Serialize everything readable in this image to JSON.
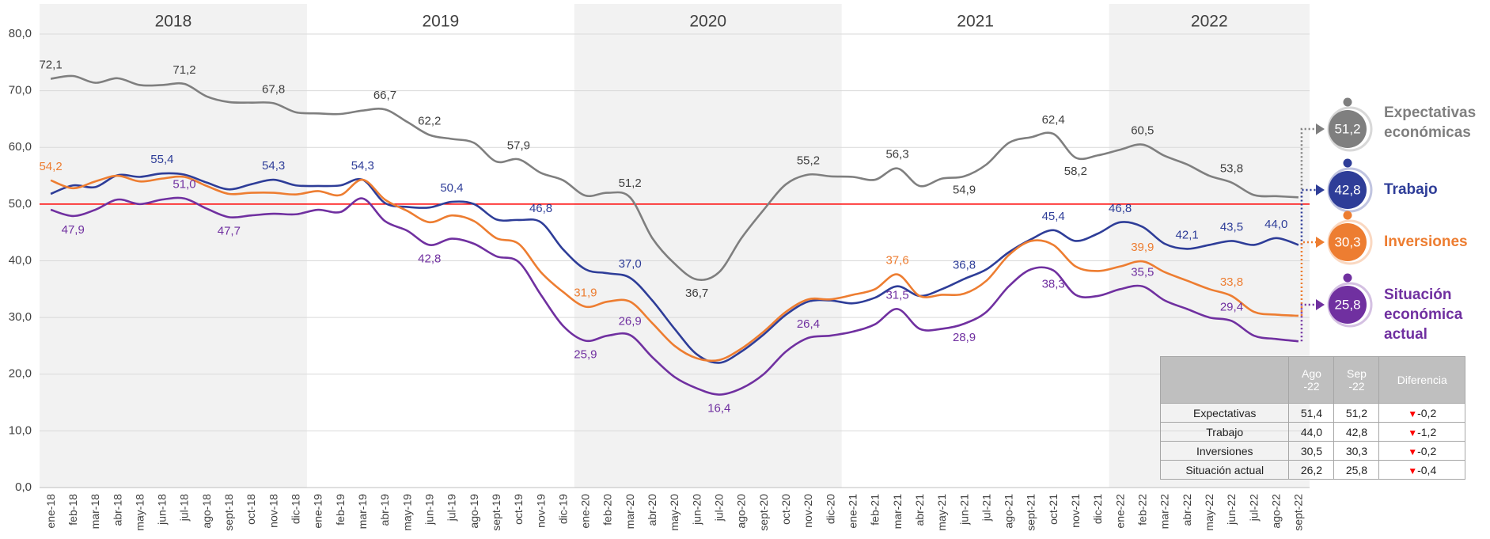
{
  "chart_data": {
    "type": "line",
    "categories": [
      "ene-18",
      "feb-18",
      "mar-18",
      "abr-18",
      "may-18",
      "jun-18",
      "jul-18",
      "ago-18",
      "sept-18",
      "oct-18",
      "nov-18",
      "dic-18",
      "ene-19",
      "feb-19",
      "mar-19",
      "abr-19",
      "may-19",
      "jun-19",
      "jul-19",
      "ago-19",
      "sept-19",
      "oct-19",
      "nov-19",
      "dic-19",
      "ene-20",
      "feb-20",
      "mar-20",
      "abr-20",
      "may-20",
      "jun-20",
      "jul-20",
      "ago-20",
      "sept-20",
      "oct-20",
      "nov-20",
      "dic-20",
      "ene-21",
      "feb-21",
      "mar-21",
      "abr-21",
      "may-21",
      "jun-21",
      "jul-21",
      "ago-21",
      "sept-21",
      "oct-21",
      "nov-21",
      "dic-21",
      "ene-22",
      "feb-22",
      "mar-22",
      "abr-22",
      "may-22",
      "jun-22",
      "jul-22",
      "ago-22",
      "sept-22"
    ],
    "year_bands": [
      {
        "label": "2018",
        "shaded": true
      },
      {
        "label": "2019",
        "shaded": false
      },
      {
        "label": "2020",
        "shaded": true
      },
      {
        "label": "2021",
        "shaded": false
      },
      {
        "label": "2022",
        "shaded": true
      }
    ],
    "ylim": [
      0,
      80
    ],
    "yticks": [
      {
        "value": 0,
        "label": "0,0"
      },
      {
        "value": 10,
        "label": "10,0"
      },
      {
        "value": 20,
        "label": "20,0"
      },
      {
        "value": 30,
        "label": "30,0"
      },
      {
        "value": 40,
        "label": "40,0"
      },
      {
        "value": 50,
        "label": "50,0"
      },
      {
        "value": 60,
        "label": "60,0"
      },
      {
        "value": 70,
        "label": "70,0"
      },
      {
        "value": 80,
        "label": "80,0"
      }
    ],
    "grid": true,
    "reference_line": {
      "value": 50,
      "color": "#ff0000"
    },
    "series": [
      {
        "name": "Expectativas económicas",
        "color": "#7f7f7f",
        "end_label": "51,2",
        "values": [
          72.1,
          72.6,
          71.4,
          72.2,
          71.0,
          71.0,
          71.2,
          69.0,
          68.0,
          67.9,
          67.8,
          66.2,
          66.0,
          65.9,
          66.5,
          66.7,
          64.5,
          62.2,
          61.5,
          60.8,
          57.5,
          57.9,
          55.5,
          54.2,
          51.5,
          52.0,
          51.2,
          44.0,
          39.5,
          36.7,
          38.0,
          44.0,
          49.0,
          53.5,
          55.2,
          54.9,
          54.8,
          54.3,
          56.3,
          53.2,
          54.5,
          54.9,
          57.0,
          60.8,
          61.8,
          62.4,
          58.2,
          58.6,
          59.6,
          60.5,
          58.5,
          57.0,
          55.0,
          53.8,
          51.6,
          51.4,
          51.2
        ],
        "value_labels": [
          "72,1",
          null,
          null,
          null,
          null,
          null,
          "71,2",
          null,
          null,
          null,
          "67,8",
          null,
          null,
          null,
          null,
          "66,7",
          null,
          "62,2",
          null,
          null,
          null,
          "57,9",
          null,
          null,
          null,
          null,
          "51,2",
          null,
          null,
          "36,7",
          null,
          null,
          null,
          null,
          "55,2",
          null,
          null,
          null,
          "56,3",
          null,
          null,
          "54,9",
          null,
          null,
          null,
          "62,4",
          "58,2",
          null,
          null,
          "60,5",
          null,
          null,
          null,
          "53,8",
          null,
          null,
          null
        ]
      },
      {
        "name": "Trabajo",
        "color": "#2e3d98",
        "end_label": "42,8",
        "values": [
          51.8,
          53.3,
          53.0,
          55.1,
          54.8,
          55.4,
          55.2,
          53.8,
          52.6,
          53.5,
          54.3,
          53.3,
          53.2,
          53.3,
          54.3,
          50.2,
          49.5,
          49.4,
          50.4,
          50.0,
          47.3,
          47.2,
          46.8,
          42.0,
          38.5,
          37.8,
          37.0,
          33.0,
          28.0,
          23.5,
          22.0,
          24.0,
          27.0,
          30.5,
          32.8,
          33.0,
          32.5,
          33.5,
          35.5,
          33.8,
          35.0,
          36.8,
          38.5,
          41.5,
          43.8,
          45.4,
          43.5,
          44.8,
          46.8,
          46.0,
          43.0,
          42.1,
          42.8,
          43.5,
          42.8,
          44.0,
          42.8
        ],
        "value_labels": [
          null,
          null,
          null,
          null,
          null,
          "55,4",
          null,
          null,
          null,
          null,
          "54,3",
          null,
          null,
          null,
          "54,3",
          null,
          null,
          null,
          "50,4",
          null,
          null,
          null,
          "46,8",
          null,
          null,
          null,
          "37,0",
          null,
          null,
          null,
          null,
          null,
          null,
          null,
          null,
          null,
          null,
          null,
          null,
          null,
          null,
          "36,8",
          null,
          null,
          null,
          "45,4",
          null,
          null,
          "46,8",
          null,
          null,
          "42,1",
          null,
          "43,5",
          null,
          "44,0",
          null
        ]
      },
      {
        "name": "Inversiones",
        "color": "#ed7d31",
        "end_label": "30,3",
        "values": [
          54.2,
          52.8,
          54.0,
          55.0,
          54.0,
          54.5,
          54.8,
          53.2,
          51.8,
          52.0,
          52.0,
          51.7,
          52.3,
          51.6,
          54.3,
          50.8,
          48.8,
          46.8,
          48.0,
          47.0,
          44.0,
          43.0,
          38.0,
          34.5,
          31.9,
          32.8,
          32.8,
          29.0,
          25.0,
          22.8,
          22.5,
          24.5,
          27.5,
          31.0,
          33.2,
          33.2,
          34.0,
          35.0,
          37.6,
          33.8,
          34.0,
          34.2,
          36.5,
          41.0,
          43.5,
          42.8,
          39.0,
          38.2,
          39.0,
          39.9,
          38.0,
          36.5,
          35.0,
          33.8,
          31.0,
          30.5,
          30.3
        ],
        "value_labels": [
          "54,2",
          null,
          null,
          null,
          null,
          null,
          null,
          null,
          null,
          null,
          null,
          null,
          null,
          null,
          null,
          null,
          null,
          null,
          null,
          null,
          null,
          null,
          null,
          null,
          "31,9",
          null,
          null,
          null,
          null,
          null,
          null,
          null,
          null,
          null,
          null,
          null,
          null,
          null,
          "37,6",
          null,
          null,
          null,
          null,
          null,
          null,
          null,
          null,
          null,
          null,
          "39,9",
          null,
          null,
          null,
          "33,8",
          null,
          null,
          null
        ]
      },
      {
        "name": "Situación económica actual",
        "color": "#7030a0",
        "end_label": "25,8",
        "values": [
          49.0,
          47.9,
          49.0,
          50.8,
          50.0,
          50.8,
          51.0,
          49.2,
          47.7,
          48.0,
          48.3,
          48.2,
          49.0,
          48.6,
          51.0,
          47.0,
          45.3,
          42.8,
          43.9,
          43.0,
          40.8,
          39.8,
          34.0,
          28.5,
          25.9,
          26.8,
          26.9,
          23.0,
          19.5,
          17.5,
          16.4,
          17.5,
          20.0,
          24.0,
          26.4,
          26.8,
          27.5,
          28.8,
          31.5,
          28.0,
          28.0,
          28.9,
          31.0,
          35.5,
          38.5,
          38.3,
          34.0,
          33.8,
          35.0,
          35.5,
          33.0,
          31.5,
          30.0,
          29.4,
          26.8,
          26.2,
          25.8
        ],
        "value_labels": [
          null,
          "47,9",
          null,
          null,
          null,
          null,
          "51,0",
          null,
          "47,7",
          null,
          null,
          null,
          null,
          null,
          null,
          null,
          null,
          "42,8",
          null,
          null,
          null,
          null,
          null,
          null,
          "25,9",
          null,
          "26,9",
          null,
          null,
          null,
          "16,4",
          null,
          null,
          null,
          "26,4",
          null,
          null,
          null,
          "31,5",
          null,
          null,
          "28,9",
          null,
          null,
          null,
          "38,3",
          null,
          null,
          null,
          "35,5",
          null,
          null,
          null,
          "29,4",
          null,
          null,
          null
        ]
      }
    ]
  },
  "table": {
    "columns": [
      "Ago -22",
      "Sep -22",
      "Diferencia"
    ],
    "rows": [
      [
        "Expectativas",
        "51,4",
        "51,2",
        "-0,2"
      ],
      [
        "Trabajo",
        "44,0",
        "42,8",
        "-1,2"
      ],
      [
        "Inversiones",
        "30,5",
        "30,3",
        "-0,2"
      ],
      [
        "Situación actual",
        "26,2",
        "25,8",
        "-0,4"
      ]
    ]
  }
}
